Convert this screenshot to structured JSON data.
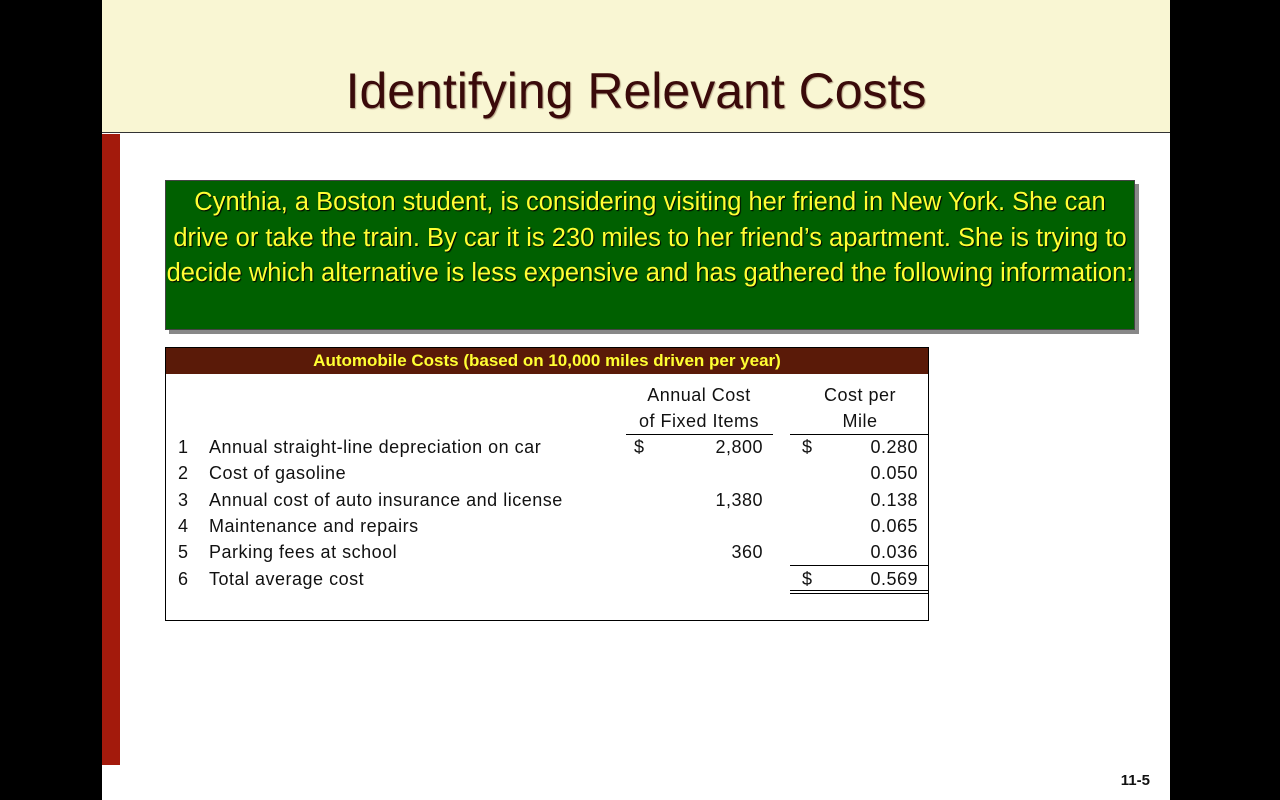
{
  "slide": {
    "title": "Identifying Relevant Costs",
    "scenario": "Cynthia, a Boston student, is considering visiting her friend in New York. She can drive or take the train. By car it is 230 miles to her friend’s apartment. She is trying to decide which alternative is less expensive and has gathered the following information:",
    "page_number": "11-5",
    "colors": {
      "header_bg": "#f9f6d3",
      "accent_bar": "#a31a0c",
      "box_bg": "#006000",
      "box_text": "#ffff33",
      "table_header_bg": "#5a1a08"
    }
  },
  "table": {
    "title": "Automobile Costs (based on 10,000 miles driven per year)",
    "col1_header_line1": "Annual Cost",
    "col1_header_line2": "of Fixed Items",
    "col2_header_line1": "Cost per",
    "col2_header_line2": "Mile",
    "rows": [
      {
        "num": "1",
        "label": "Annual straight-line depreciation on car",
        "cur1": "$",
        "annual": "2,800",
        "cur2": "$",
        "per_mile": "0.280"
      },
      {
        "num": "2",
        "label": "Cost of gasoline",
        "cur1": "",
        "annual": "",
        "cur2": "",
        "per_mile": "0.050"
      },
      {
        "num": "3",
        "label": "Annual cost of auto insurance and license",
        "cur1": "",
        "annual": "1,380",
        "cur2": "",
        "per_mile": "0.138"
      },
      {
        "num": "4",
        "label": "Maintenance and repairs",
        "cur1": "",
        "annual": "",
        "cur2": "",
        "per_mile": "0.065"
      },
      {
        "num": "5",
        "label": "Parking fees at school",
        "cur1": "",
        "annual": "360",
        "cur2": "",
        "per_mile": "0.036"
      },
      {
        "num": "6",
        "label": "Total average cost",
        "cur1": "",
        "annual": "",
        "cur2": "$",
        "per_mile": "0.569"
      }
    ]
  }
}
